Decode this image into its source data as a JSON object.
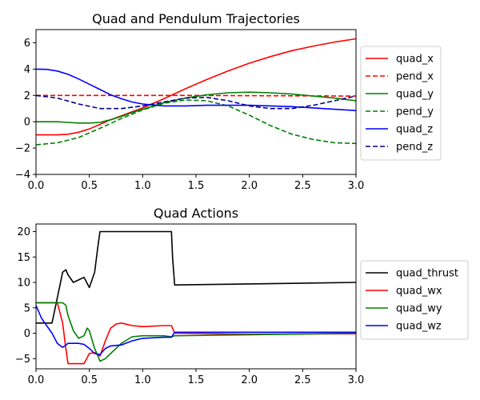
{
  "chart_data": [
    {
      "type": "line",
      "title": "Quad and Pendulum Trajectories",
      "xlabel": "",
      "ylabel": "",
      "xlim": [
        0,
        3
      ],
      "ylim": [
        -4,
        7
      ],
      "xticks": [
        "0.0",
        "0.5",
        "1.0",
        "1.5",
        "2.0",
        "2.5",
        "3.0"
      ],
      "yticks": [
        "−4",
        "−2",
        "0",
        "2",
        "4",
        "6"
      ],
      "grid": false,
      "legend_position": "outside-right",
      "series": [
        {
          "name": "quad_x",
          "color": "#ff0000",
          "dash": "solid",
          "x": [
            0,
            0.2,
            0.3,
            0.4,
            0.5,
            0.6,
            0.7,
            0.8,
            0.9,
            1.0,
            1.2,
            1.4,
            1.6,
            1.8,
            2.0,
            2.2,
            2.4,
            2.6,
            2.8,
            3.0
          ],
          "y": [
            -1.0,
            -1.0,
            -0.95,
            -0.8,
            -0.55,
            -0.2,
            0.15,
            0.45,
            0.75,
            1.05,
            1.75,
            2.5,
            3.2,
            3.85,
            4.45,
            4.95,
            5.4,
            5.75,
            6.05,
            6.3
          ]
        },
        {
          "name": "pend_x",
          "color": "#ff0000",
          "dash": "dashed",
          "x": [
            0,
            0.5,
            1.0,
            1.5,
            2.0,
            2.5,
            3.0
          ],
          "y": [
            2.0,
            2.0,
            2.0,
            2.0,
            1.98,
            1.97,
            1.95
          ]
        },
        {
          "name": "quad_y",
          "color": "#008000",
          "dash": "solid",
          "x": [
            0,
            0.2,
            0.3,
            0.4,
            0.5,
            0.6,
            0.7,
            0.8,
            0.9,
            1.0,
            1.2,
            1.4,
            1.6,
            1.8,
            2.0,
            2.2,
            2.4,
            2.6,
            2.8,
            3.0
          ],
          "y": [
            0.0,
            0.0,
            -0.05,
            -0.1,
            -0.1,
            -0.05,
            0.15,
            0.4,
            0.7,
            0.95,
            1.45,
            1.8,
            2.05,
            2.2,
            2.25,
            2.2,
            2.1,
            1.95,
            1.8,
            1.6
          ]
        },
        {
          "name": "pend_y",
          "color": "#008000",
          "dash": "dashed",
          "x": [
            0,
            0.2,
            0.4,
            0.6,
            0.8,
            1.0,
            1.2,
            1.4,
            1.6,
            1.8,
            2.0,
            2.2,
            2.4,
            2.6,
            2.8,
            3.0
          ],
          "y": [
            -1.75,
            -1.6,
            -1.2,
            -0.5,
            0.25,
            0.9,
            1.4,
            1.65,
            1.6,
            1.2,
            0.5,
            -0.3,
            -0.95,
            -1.35,
            -1.6,
            -1.65
          ]
        },
        {
          "name": "quad_z",
          "color": "#0000ff",
          "dash": "solid",
          "x": [
            0,
            0.1,
            0.2,
            0.3,
            0.4,
            0.5,
            0.6,
            0.7,
            0.8,
            0.9,
            1.0,
            1.2,
            1.4,
            1.6,
            1.8,
            2.0,
            2.2,
            2.4,
            2.6,
            2.8,
            3.0
          ],
          "y": [
            4.0,
            3.98,
            3.85,
            3.6,
            3.25,
            2.85,
            2.45,
            2.05,
            1.75,
            1.5,
            1.35,
            1.2,
            1.2,
            1.25,
            1.25,
            1.25,
            1.2,
            1.15,
            1.05,
            0.95,
            0.85
          ]
        },
        {
          "name": "pend_z",
          "color": "#00008b",
          "dash": "dashed",
          "x": [
            0,
            0.2,
            0.4,
            0.6,
            0.8,
            1.0,
            1.2,
            1.4,
            1.6,
            1.8,
            2.0,
            2.2,
            2.4,
            2.6,
            2.8,
            3.0
          ],
          "y": [
            2.0,
            1.8,
            1.35,
            1.0,
            1.0,
            1.2,
            1.5,
            1.8,
            1.85,
            1.6,
            1.2,
            1.0,
            1.0,
            1.25,
            1.6,
            1.95
          ]
        }
      ]
    },
    {
      "type": "line",
      "title": "Quad Actions",
      "xlabel": "",
      "ylabel": "",
      "xlim": [
        0,
        3
      ],
      "ylim": [
        -7,
        21.5
      ],
      "xticks": [
        "0.0",
        "0.5",
        "1.0",
        "1.5",
        "2.0",
        "2.5",
        "3.0"
      ],
      "yticks": [
        "−5",
        "0",
        "5",
        "10",
        "15",
        "20"
      ],
      "grid": false,
      "legend_position": "outside-right",
      "series": [
        {
          "name": "quad_thrust",
          "color": "#000000",
          "dash": "solid",
          "x": [
            0,
            0.15,
            0.2,
            0.25,
            0.28,
            0.3,
            0.35,
            0.4,
            0.45,
            0.5,
            0.55,
            0.58,
            0.6,
            1.27,
            1.28,
            1.3,
            2.0,
            3.0
          ],
          "y": [
            2.0,
            2.0,
            7.0,
            12.0,
            12.5,
            11.5,
            10.0,
            10.5,
            11.0,
            9.0,
            12.0,
            17.0,
            20.0,
            20.0,
            15.0,
            9.5,
            9.7,
            10.0
          ]
        },
        {
          "name": "quad_wx",
          "color": "#ff0000",
          "dash": "solid",
          "x": [
            0,
            0.15,
            0.2,
            0.25,
            0.28,
            0.3,
            0.45,
            0.5,
            0.55,
            0.6,
            0.65,
            0.7,
            0.75,
            0.8,
            0.9,
            1.0,
            1.2,
            1.27,
            1.3,
            2.0,
            3.0
          ],
          "y": [
            6.0,
            6.0,
            6.0,
            2.0,
            -3.0,
            -6.0,
            -6.0,
            -4.0,
            -3.8,
            -4.5,
            -1.5,
            1.0,
            1.8,
            2.0,
            1.5,
            1.3,
            1.5,
            1.5,
            0.0,
            -0.2,
            -0.1
          ]
        },
        {
          "name": "quad_wy",
          "color": "#008000",
          "dash": "solid",
          "x": [
            0,
            0.15,
            0.25,
            0.28,
            0.3,
            0.35,
            0.4,
            0.45,
            0.48,
            0.5,
            0.55,
            0.6,
            0.65,
            0.7,
            0.8,
            0.9,
            1.0,
            1.2,
            1.27,
            1.3,
            2.0,
            3.0
          ],
          "y": [
            6.0,
            6.0,
            6.0,
            5.5,
            3.5,
            0.5,
            -1.0,
            -0.5,
            1.0,
            0.5,
            -3.0,
            -5.5,
            -5.0,
            -4.0,
            -2.0,
            -0.7,
            -0.5,
            -0.5,
            -0.7,
            -0.5,
            -0.3,
            0.0
          ]
        },
        {
          "name": "quad_wz",
          "color": "#0000ff",
          "dash": "solid",
          "x": [
            0,
            0.05,
            0.1,
            0.15,
            0.2,
            0.25,
            0.3,
            0.35,
            0.4,
            0.45,
            0.5,
            0.55,
            0.6,
            0.65,
            0.7,
            0.8,
            0.9,
            1.0,
            1.2,
            1.27,
            1.3,
            2.0,
            3.0
          ],
          "y": [
            5.5,
            3.0,
            1.5,
            0.0,
            -2.0,
            -2.8,
            -2.0,
            -2.0,
            -2.0,
            -2.2,
            -3.0,
            -4.0,
            -4.2,
            -3.0,
            -2.5,
            -2.3,
            -1.5,
            -1.0,
            -0.8,
            -0.8,
            0.2,
            0.2,
            0.2
          ]
        }
      ]
    }
  ]
}
